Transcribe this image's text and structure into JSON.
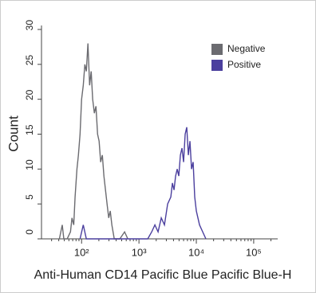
{
  "chart_data": {
    "type": "line",
    "xscale": "log",
    "legend_position": "upper right",
    "ylabel": "Count",
    "xlabel": "Anti-Human CD14 Pacific Blue Pacific Blue-H",
    "xlim": [
      20,
      262144
    ],
    "xticks": [
      {
        "value": 100,
        "label": "10²"
      },
      {
        "value": 1000,
        "label": "10³"
      },
      {
        "value": 10000,
        "label": "10⁴"
      },
      {
        "value": 100000,
        "label": "10⁵"
      }
    ],
    "ylim": [
      0,
      30
    ],
    "yticks": [
      0,
      5,
      10,
      15,
      20,
      25,
      30
    ],
    "series": [
      {
        "name": "Negative",
        "color": "#6b6b70",
        "x": [
          41,
          46,
          49,
          56,
          64,
          68,
          73,
          77,
          83,
          88,
          94,
          100,
          107,
          114,
          121,
          129,
          138,
          147,
          156,
          167,
          178,
          190,
          202,
          215,
          230,
          245,
          261,
          278,
          297,
          316,
          337,
          371,
          464,
          562,
          639
        ],
        "values": [
          0,
          2,
          0,
          0,
          1,
          3,
          2,
          6,
          10,
          12,
          15,
          20,
          22,
          25,
          24,
          28,
          22,
          24,
          20,
          18,
          19,
          15,
          14,
          11,
          12,
          9,
          7,
          5,
          3,
          4,
          2,
          0,
          0,
          1,
          0
        ]
      },
      {
        "name": "Positive",
        "color": "#4b3f9e",
        "x": [
          94,
          107,
          121,
          1422,
          1668,
          1896,
          2154,
          2448,
          2783,
          3162,
          3594,
          3831,
          4084,
          4353,
          4642,
          4948,
          5275,
          5623,
          5995,
          6390,
          6813,
          7262,
          7743,
          8254,
          8799,
          9380,
          10000,
          11370,
          12920,
          14680
        ],
        "values": [
          0,
          2,
          0,
          0,
          1,
          2,
          1,
          3,
          2,
          5,
          6,
          8,
          7,
          9,
          10,
          9,
          12,
          13,
          11,
          15,
          16,
          12,
          14,
          10,
          11,
          6,
          4,
          2,
          1,
          0
        ]
      }
    ]
  }
}
